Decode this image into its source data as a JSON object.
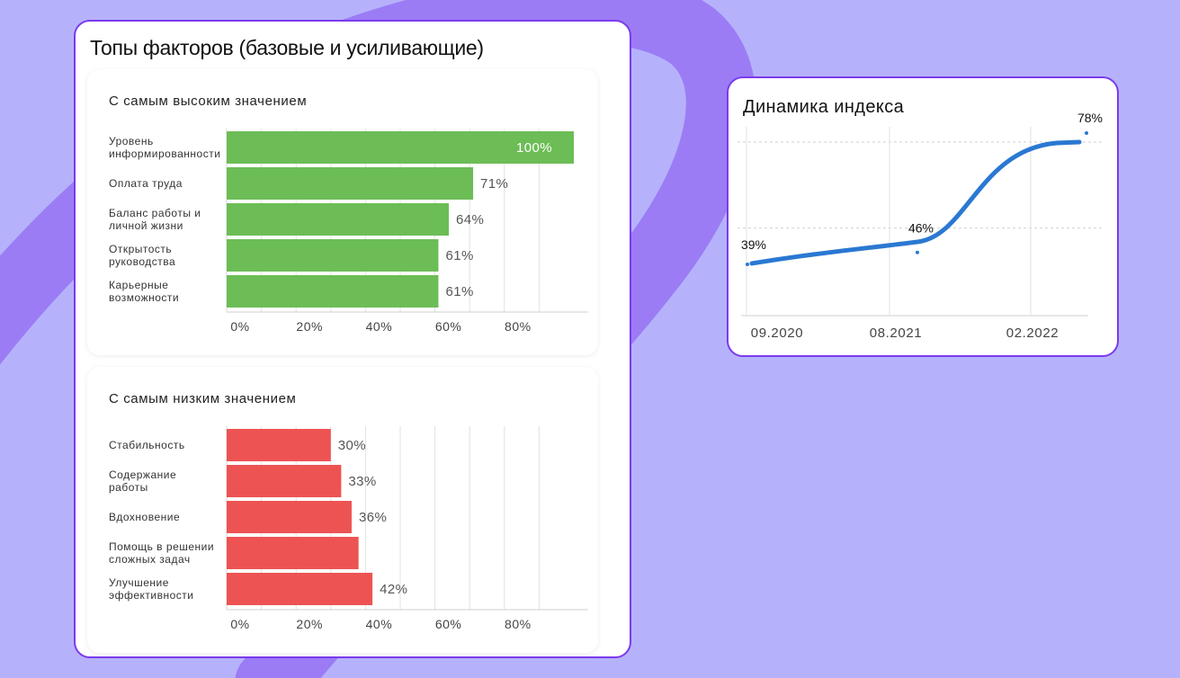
{
  "factors_panel": {
    "title": "Топы факторов (базовые и усиливающие)"
  },
  "index_panel": {
    "title": "Динамика индекса"
  },
  "colors": {
    "background": "#b5b2fb",
    "accent_border": "#7c3aed",
    "swoosh": "#9b7cf5",
    "high_bars": "#6cbd56",
    "low_bars": "#ee5353",
    "index_line": "#2a78d2"
  },
  "chart_data": [
    {
      "type": "bar",
      "orientation": "horizontal",
      "title": "С самым высоким значением",
      "categories": [
        "Уровень\nинформированности",
        "Оплата труда",
        "Баланс работы и\nличной жизни",
        "Открытость\nруководства",
        "Карьерные\nвозможности"
      ],
      "values": [
        100,
        71,
        64,
        61,
        61
      ],
      "data_labels": [
        "100%",
        "71%",
        "64%",
        "61%",
        "61%"
      ],
      "xticks": [
        "0%",
        "20%",
        "40%",
        "60%",
        "80%"
      ],
      "xlim": [
        0,
        100
      ],
      "grid": true
    },
    {
      "type": "bar",
      "orientation": "horizontal",
      "title": "С самым низким значением",
      "categories": [
        "Стабильность",
        "Содержание\nработы",
        "Вдохновение",
        "Помощь в решении\nсложных задач",
        "Улучшение\nэффективности"
      ],
      "values": [
        30,
        33,
        36,
        38,
        42
      ],
      "data_labels": [
        "30%",
        "33%",
        "36%",
        "",
        "42%"
      ],
      "xticks": [
        "0%",
        "20%",
        "40%",
        "60%",
        "80%"
      ],
      "xlim": [
        0,
        100
      ],
      "grid": true
    },
    {
      "type": "line",
      "title": "Динамика индекса",
      "x": [
        "09.2020",
        "08.2021",
        "02.2022"
      ],
      "values": [
        39,
        46,
        78
      ],
      "data_labels": [
        "39%",
        "46%",
        "78%"
      ],
      "ylim": [
        30,
        85
      ],
      "grid": true
    }
  ]
}
